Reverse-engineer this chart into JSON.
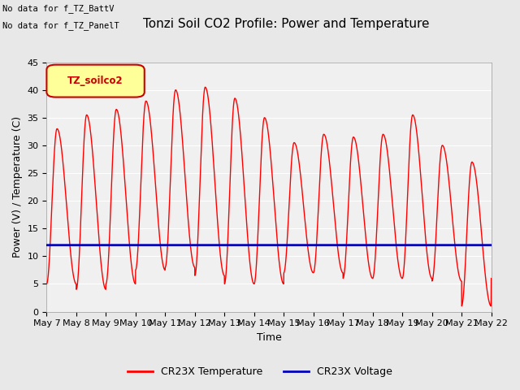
{
  "title": "Tonzi Soil CO2 Profile: Power and Temperature",
  "xlabel": "Time",
  "ylabel": "Power (V) / Temperature (C)",
  "ylim": [
    0,
    45
  ],
  "yticks": [
    0,
    5,
    10,
    15,
    20,
    25,
    30,
    35,
    40,
    45
  ],
  "x_tick_labels": [
    "May 7",
    "May 8",
    "May 9",
    "May 10",
    "May 11",
    "May 12",
    "May 13",
    "May 14",
    "May 15",
    "May 16",
    "May 17",
    "May 18",
    "May 19",
    "May 20",
    "May 21",
    "May 22"
  ],
  "no_data_texts": [
    "No data for f_TZ_BattV",
    "No data for f_TZ_PanelT"
  ],
  "legend_box_label": "TZ_soilco2",
  "temp_color": "#FF0000",
  "voltage_color": "#0000BB",
  "legend_temp": "CR23X Temperature",
  "legend_voltage": "CR23X Voltage",
  "bg_color": "#E8E8E8",
  "plot_bg_color": "#F0F0F0",
  "grid_color": "#FFFFFF",
  "voltage_value": 12.0,
  "title_fontsize": 11,
  "label_fontsize": 9,
  "tick_fontsize": 8
}
